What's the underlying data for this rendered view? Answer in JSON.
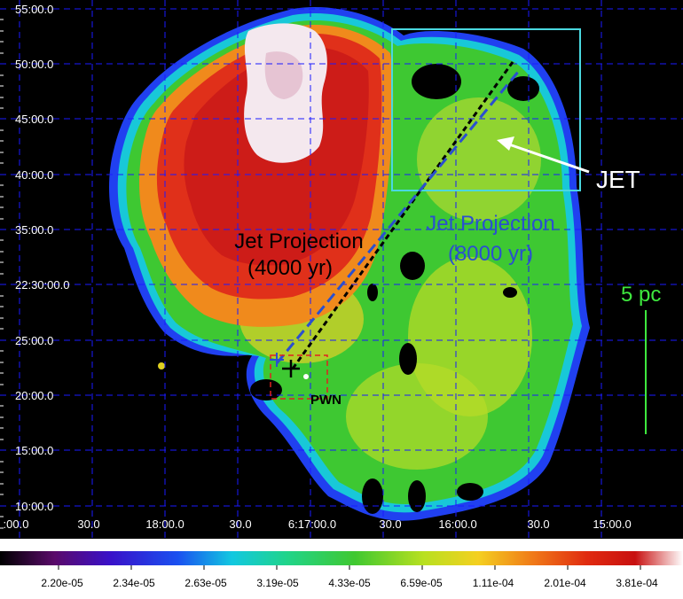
{
  "image": {
    "y_axis_labels": [
      "55:00.0",
      "50:00.0",
      "45:00.0",
      "40:00.0",
      "35:00.0",
      "22:30:00.0",
      "25:00.0",
      "20:00.0",
      "15:00.0",
      "10:00.0"
    ],
    "x_axis_labels": [
      ":00.0",
      "30.0",
      "18:00.0",
      "30.0",
      "6:17:00.0",
      "30.0",
      "16:00.0",
      "30.0",
      "15:00.0"
    ]
  },
  "annotations": {
    "jet_label": "JET",
    "jet_projection_4000_line1": "Jet Projection",
    "jet_projection_4000_line2": "(4000 yr)",
    "jet_projection_8000_line1": "Jet Projection",
    "jet_projection_8000_line2": "(8000 yr)",
    "pwn_label": "PWN",
    "scale_label": "5 pc"
  },
  "colorbar": {
    "labels": [
      "2.20e-05",
      "2.34e-05",
      "2.63e-05",
      "3.19e-05",
      "4.33e-05",
      "6.59e-05",
      "1.11e-04",
      "2.01e-04",
      "3.81e-04"
    ]
  },
  "colors": {
    "grid": "#1a1aff",
    "jet_box": "#4ad8e0",
    "jet_4000_line": "#000000",
    "jet_8000_line": "#2a4fd0",
    "jet_8000_text": "#2a4fd0",
    "scale_bar": "#3ee83e",
    "pwn_box": "#e02020"
  }
}
